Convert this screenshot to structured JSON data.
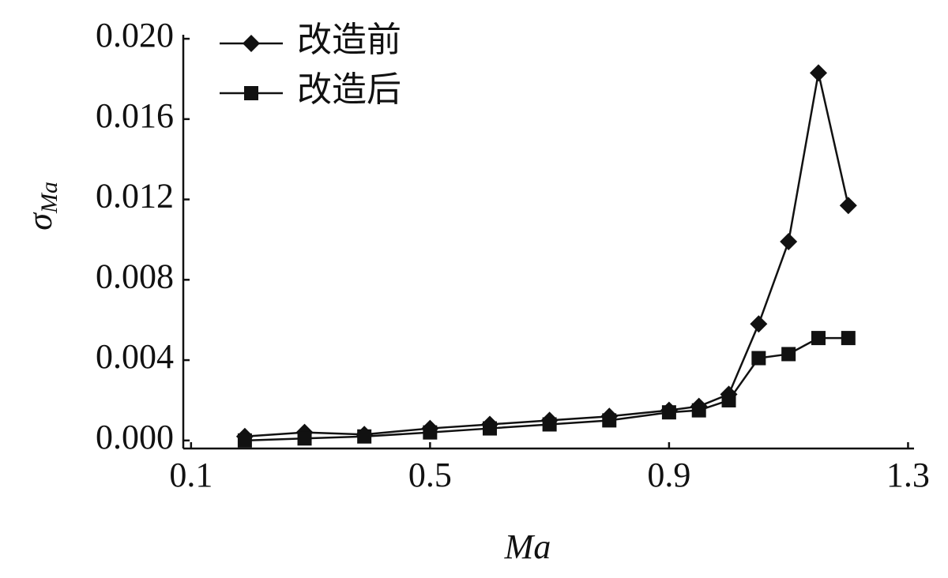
{
  "chart_data": {
    "type": "line",
    "xlabel": "Ma",
    "ylabel": {
      "symbol": "σ",
      "subscript": "Ma"
    },
    "x": [
      0.19,
      0.29,
      0.39,
      0.5,
      0.6,
      0.7,
      0.8,
      0.9,
      0.95,
      1.0,
      1.05,
      1.1,
      1.15,
      1.2
    ],
    "series": [
      {
        "name": "改造前",
        "color": "#111111",
        "marker": "diamond",
        "values": [
          0.0002,
          0.0004,
          0.0003,
          0.0006,
          0.0008,
          0.001,
          0.0012,
          0.0015,
          0.0017,
          0.0023,
          0.0058,
          0.0099,
          0.0183,
          0.0117
        ]
      },
      {
        "name": "改造后",
        "color": "#111111",
        "marker": "square",
        "values": [
          0.0,
          0.0001,
          0.0002,
          0.0004,
          0.0006,
          0.0008,
          0.001,
          0.0014,
          0.0015,
          0.002,
          0.0041,
          0.0043,
          0.0051,
          0.0051
        ]
      }
    ],
    "xlim": [
      0.087,
      1.31
    ],
    "xticks": [
      0.1,
      0.5,
      0.9,
      1.3
    ],
    "ylim": [
      -0.0004,
      0.0202
    ],
    "yticks": [
      {
        "value": 0,
        "label": "0.000"
      },
      0.004,
      0.008,
      0.012,
      0.016,
      {
        "value": 0.02,
        "label": "0.020"
      }
    ],
    "legend": "upper-left"
  }
}
